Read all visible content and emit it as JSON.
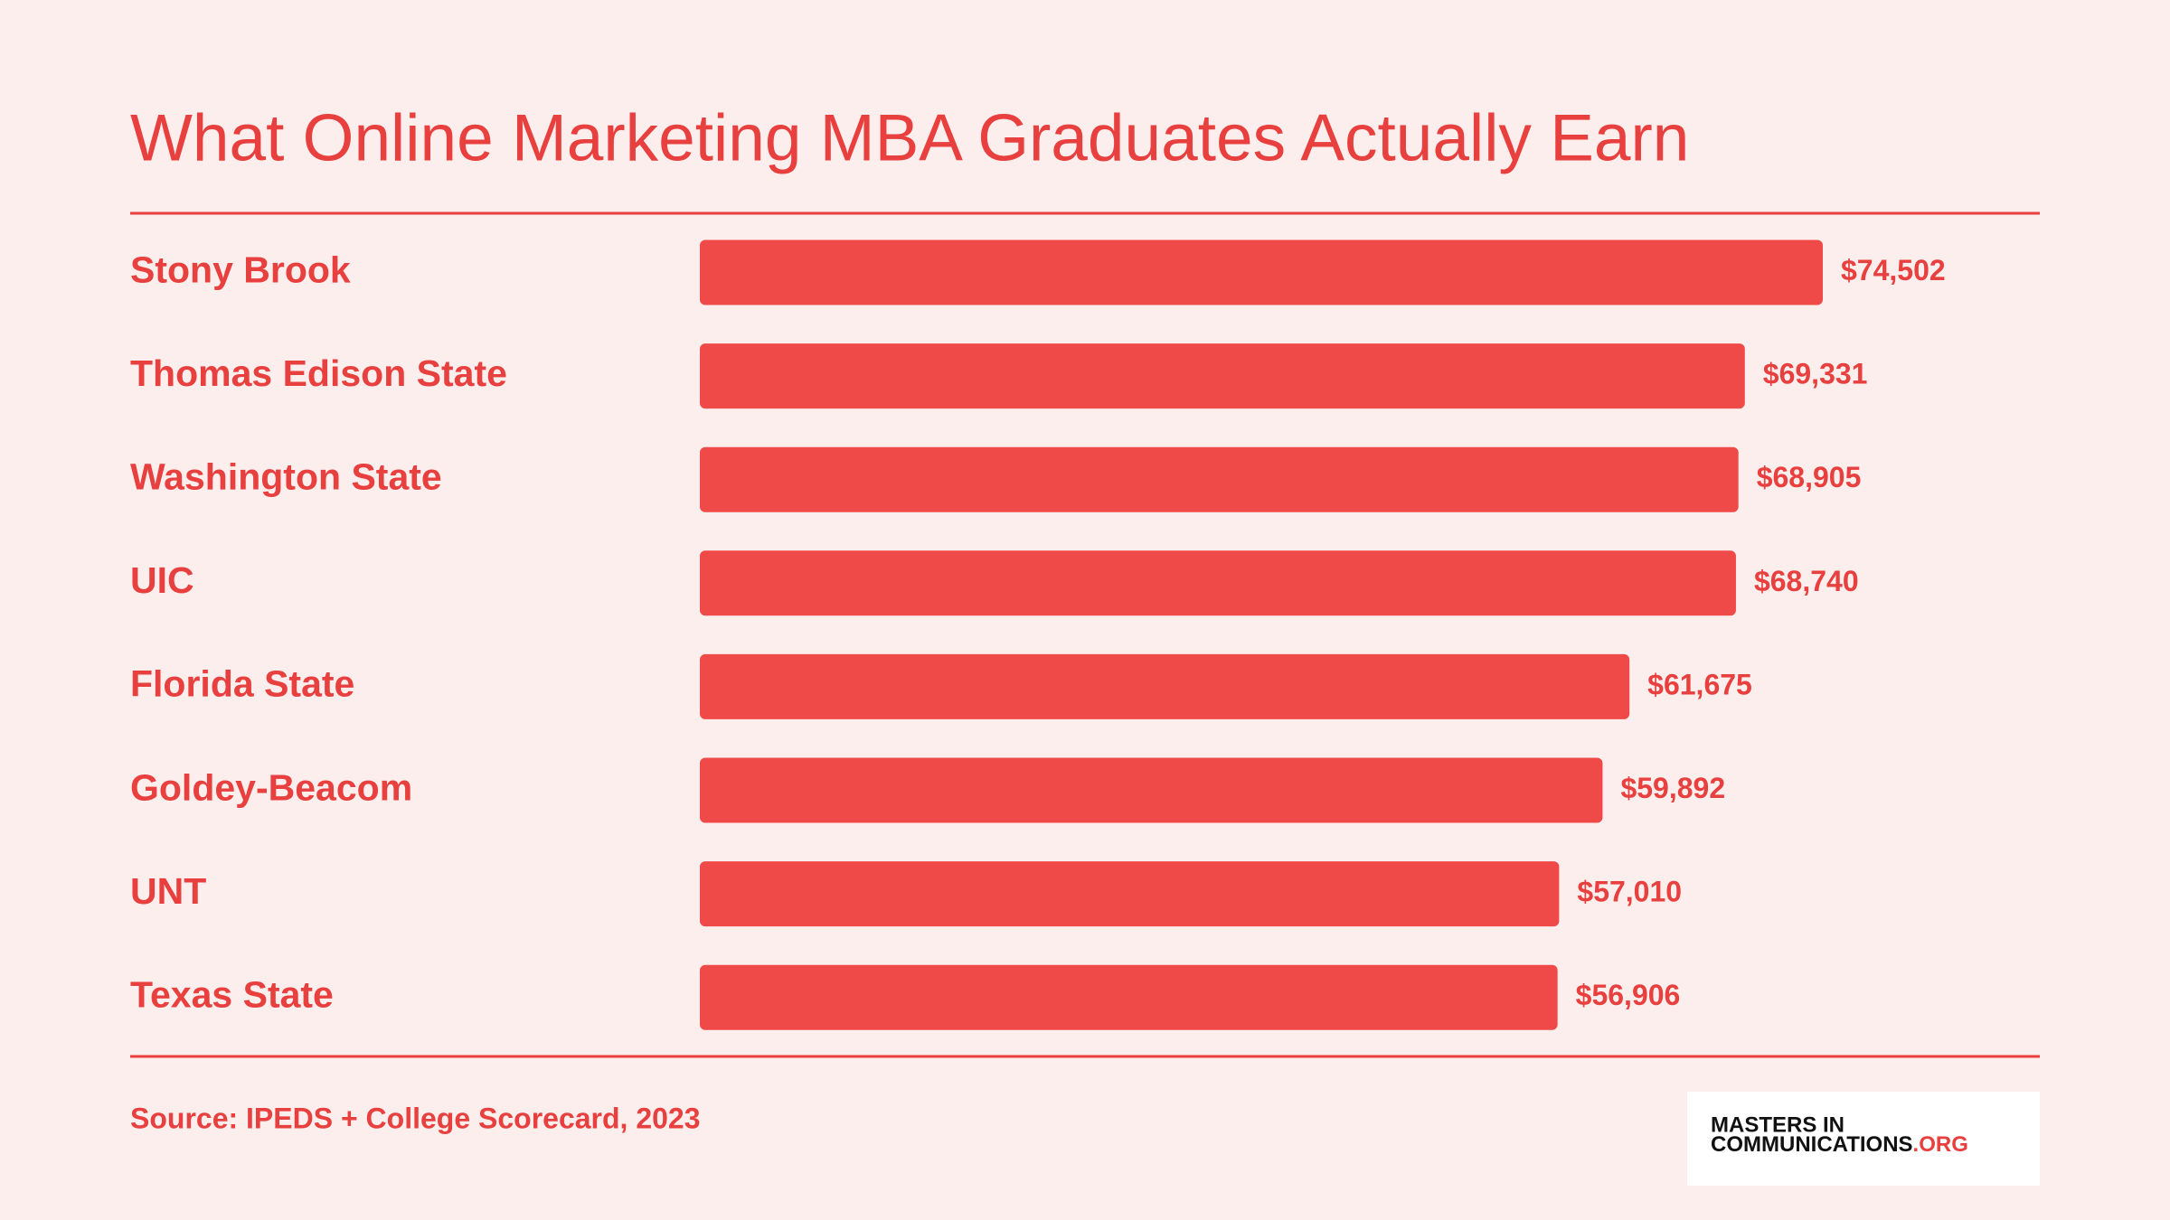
{
  "chart_data": {
    "type": "bar",
    "orientation": "horizontal",
    "title": "What Online Marketing MBA Graduates Actually Earn",
    "categories": [
      "Stony Brook",
      "Thomas Edison State",
      "Washington State",
      "UIC",
      "Florida State",
      "Goldey-Beacom",
      "UNT",
      "Texas State"
    ],
    "values": [
      74502,
      69331,
      68905,
      68740,
      61675,
      59892,
      57010,
      56906
    ],
    "value_labels": [
      "$74,502",
      "$69,331",
      "$68,905",
      "$68,740",
      "$61,675",
      "$59,892",
      "$57,010",
      "$56,906"
    ],
    "color": "#ef4a47",
    "source": "Source: IPEDS + College Scorecard, 2023"
  },
  "logo": {
    "line1": "MASTERS IN",
    "line2": "COMMUNICATIONS",
    "suffix": ".ORG"
  }
}
